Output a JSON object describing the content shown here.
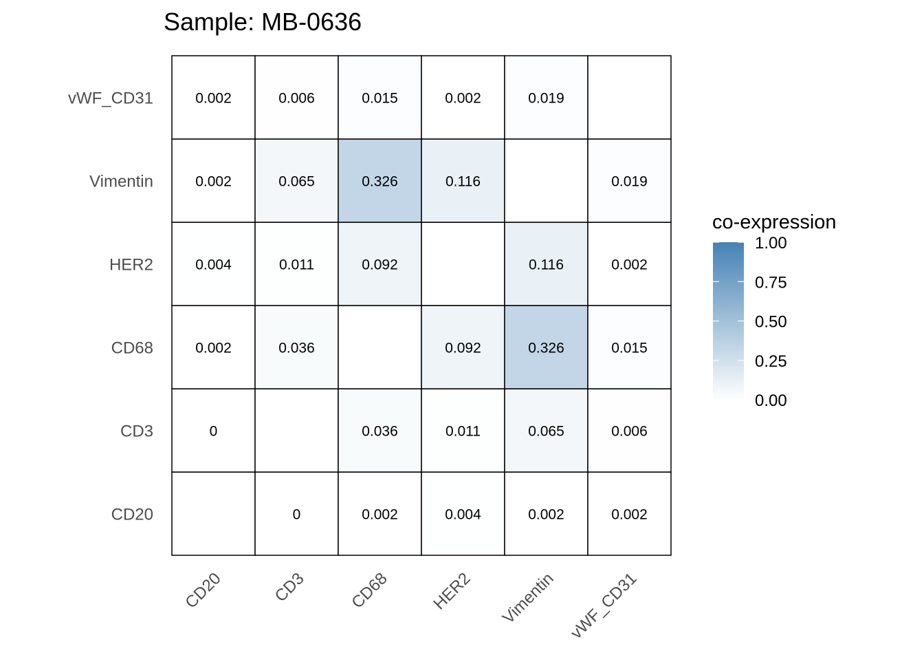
{
  "chart_data": {
    "type": "heatmap",
    "title": "Sample: MB-0636",
    "x_categories": [
      "CD20",
      "CD3",
      "CD68",
      "HER2",
      "Vimentin",
      "vWF_CD31"
    ],
    "y_categories": [
      "CD20",
      "CD3",
      "CD68",
      "HER2",
      "Vimentin",
      "vWF_CD31"
    ],
    "values": [
      [
        null,
        "0",
        "0.002",
        "0.004",
        "0.002",
        "0.002"
      ],
      [
        "0",
        null,
        "0.036",
        "0.011",
        "0.065",
        "0.006"
      ],
      [
        "0.002",
        "0.036",
        null,
        "0.092",
        "0.326",
        "0.015"
      ],
      [
        "0.004",
        "0.011",
        "0.092",
        null,
        "0.116",
        "0.002"
      ],
      [
        "0.002",
        "0.065",
        "0.326",
        "0.116",
        null,
        "0.019"
      ],
      [
        "0.002",
        "0.006",
        "0.015",
        "0.002",
        "0.019",
        null
      ]
    ],
    "legend": {
      "title": "co-expression",
      "ticks": [
        "0.00",
        "0.25",
        "0.50",
        "0.75",
        "1.00"
      ],
      "range": [
        0,
        1
      ],
      "low_color": "#FFFFFF",
      "high_color": "#4682B4",
      "placement": "right"
    }
  }
}
